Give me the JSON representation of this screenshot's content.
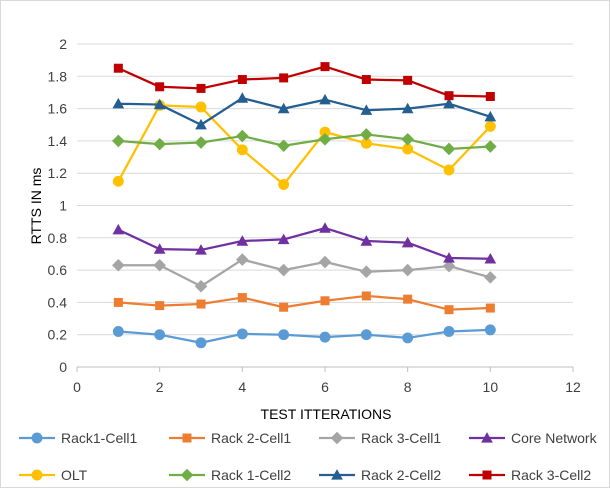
{
  "chart_data": {
    "type": "line",
    "title": "",
    "xlabel": "TEST ITTERATIONS",
    "ylabel": "RTTS IN ms",
    "xlim": [
      0,
      12
    ],
    "ylim": [
      0,
      2
    ],
    "xticks": [
      0,
      2,
      4,
      6,
      8,
      10,
      12
    ],
    "yticks": [
      0,
      0.2,
      0.4,
      0.6,
      0.8,
      1,
      1.2,
      1.4,
      1.6,
      1.8,
      2
    ],
    "ytick_labels": [
      "0",
      "0.2",
      "0.4",
      "0.6",
      "0.8",
      "1",
      "1.2",
      "1.4",
      "1.6",
      "1.8",
      "2"
    ],
    "grid": "horizontal",
    "legend_position": "bottom",
    "x": [
      1,
      2,
      3,
      4,
      5,
      6,
      7,
      8,
      9,
      10
    ],
    "series": [
      {
        "name": "Rack1-Cell1",
        "color": "#5B9BD5",
        "marker": "circle",
        "values": [
          0.22,
          0.2,
          0.15,
          0.205,
          0.2,
          0.185,
          0.2,
          0.18,
          0.22,
          0.23
        ]
      },
      {
        "name": "Rack 2-Cell1",
        "color": "#ED7D31",
        "marker": "square",
        "values": [
          0.4,
          0.38,
          0.39,
          0.43,
          0.37,
          0.41,
          0.44,
          0.42,
          0.355,
          0.365
        ]
      },
      {
        "name": "Rack 3-Cell1",
        "color": "#A5A5A5",
        "marker": "diamond",
        "values": [
          0.63,
          0.63,
          0.5,
          0.665,
          0.6,
          0.65,
          0.59,
          0.6,
          0.625,
          0.555
        ]
      },
      {
        "name": "Core Network",
        "color": "#7030A0",
        "marker": "triangle",
        "values": [
          0.85,
          0.73,
          0.725,
          0.78,
          0.79,
          0.86,
          0.78,
          0.77,
          0.675,
          0.67
        ]
      },
      {
        "name": "OLT",
        "color": "#FFC000",
        "marker": "circle",
        "values": [
          1.15,
          1.62,
          1.61,
          1.345,
          1.13,
          1.455,
          1.385,
          1.35,
          1.22,
          1.49
        ]
      },
      {
        "name": "Rack 1-Cell2",
        "color": "#70AD47",
        "marker": "diamond",
        "values": [
          1.4,
          1.38,
          1.39,
          1.43,
          1.37,
          1.41,
          1.44,
          1.41,
          1.35,
          1.365
        ]
      },
      {
        "name": "Rack 2-Cell2",
        "color": "#255E91",
        "marker": "triangle",
        "values": [
          1.63,
          1.625,
          1.5,
          1.665,
          1.6,
          1.655,
          1.59,
          1.6,
          1.63,
          1.55
        ]
      },
      {
        "name": "Rack 3-Cell2",
        "color": "#C00000",
        "marker": "square",
        "values": [
          1.85,
          1.735,
          1.725,
          1.78,
          1.79,
          1.86,
          1.78,
          1.775,
          1.68,
          1.675
        ]
      }
    ]
  }
}
